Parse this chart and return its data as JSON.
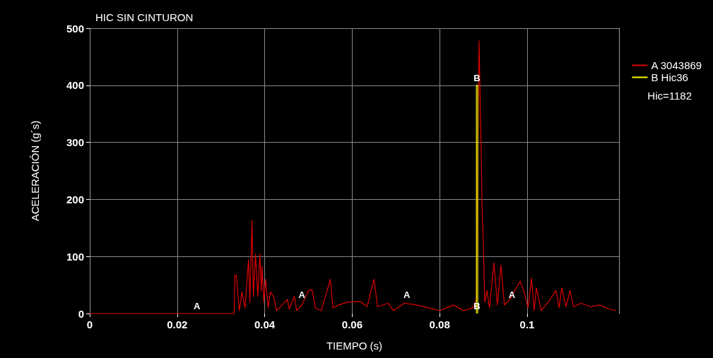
{
  "chart_data": {
    "type": "line",
    "title": "HIC SIN CINTURON",
    "xlabel": "TIEMPO (s)",
    "ylabel": "ACELERACIÓN (g´s)",
    "xlim": [
      0,
      0.121
    ],
    "xticks": [
      0,
      0.02,
      0.04,
      0.06,
      0.08,
      0.1
    ],
    "ylim": [
      0,
      500
    ],
    "yticks": [
      0,
      100,
      200,
      300,
      400,
      500
    ],
    "grid": true,
    "legend": "right",
    "marker": "none",
    "line_style": "solid",
    "series": [
      {
        "name": "A 3043869",
        "color": "#dd0000",
        "x": [
          0,
          0.01,
          0.02,
          0.03,
          0.033,
          0.0332,
          0.0335,
          0.0342,
          0.0348,
          0.0355,
          0.0363,
          0.0366,
          0.0371,
          0.0374,
          0.0379,
          0.0384,
          0.0389,
          0.0392,
          0.0394,
          0.0398,
          0.0402,
          0.0408,
          0.0413,
          0.0421,
          0.0427,
          0.044,
          0.0452,
          0.0456,
          0.0468,
          0.0473,
          0.0485,
          0.05,
          0.0508,
          0.0516,
          0.0529,
          0.0537,
          0.055,
          0.0556,
          0.0569,
          0.059,
          0.0618,
          0.0634,
          0.065,
          0.0658,
          0.0682,
          0.0694,
          0.0719,
          0.0747,
          0.0774,
          0.08,
          0.0832,
          0.0855,
          0.0876,
          0.0884,
          0.089,
          0.0895,
          0.0897,
          0.09,
          0.0903,
          0.0908,
          0.0914,
          0.0924,
          0.0932,
          0.094,
          0.0948,
          0.0961,
          0.0984,
          0.0994,
          0.1002,
          0.101,
          0.1016,
          0.1021,
          0.1032,
          0.1048,
          0.1066,
          0.1073,
          0.1079,
          0.1089,
          0.1098,
          0.1106,
          0.1123,
          0.1145,
          0.1166,
          0.1187,
          0.1203
        ],
        "values": [
          0,
          0,
          0,
          0,
          0,
          67,
          67,
          5,
          38,
          10,
          94,
          20,
          163,
          30,
          104,
          30,
          104,
          40,
          83,
          20,
          60,
          10,
          38,
          28,
          5,
          15,
          25,
          8,
          30,
          5,
          15,
          40,
          42,
          10,
          5,
          25,
          60,
          10,
          15,
          20,
          21,
          12,
          60,
          12,
          18,
          5,
          18,
          15,
          10,
          5,
          15,
          5,
          10,
          25,
          478,
          281,
          182,
          120,
          20,
          40,
          10,
          89,
          15,
          85,
          15,
          25,
          57,
          35,
          10,
          62,
          5,
          45,
          5,
          20,
          40,
          10,
          45,
          12,
          40,
          12,
          18,
          12,
          15,
          8,
          5
        ]
      },
      {
        "name": "B Hic36",
        "color": "#ffff00",
        "x": [
          0.0884,
          0.0884,
          0.0887,
          0.0887
        ],
        "values": [
          0,
          400,
          400,
          0
        ]
      }
    ],
    "annotations": [
      {
        "text": "A",
        "x": 0.0245,
        "y": 0
      },
      {
        "text": "A",
        "x": 0.0485,
        "y": 20
      },
      {
        "text": "A",
        "x": 0.0725,
        "y": 20
      },
      {
        "text": "A",
        "x": 0.0965,
        "y": 20
      },
      {
        "text": "B",
        "x": 0.0885,
        "y": 400
      },
      {
        "text": "B",
        "x": 0.0885,
        "y": 0
      },
      "Hic=1182"
    ]
  }
}
